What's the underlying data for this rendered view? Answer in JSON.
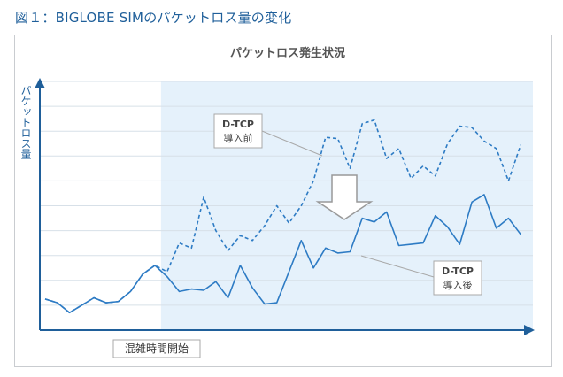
{
  "figure_title": "図１：BIGLOBE SIMのパケットロス量の変化",
  "chart_data": {
    "type": "line",
    "title": "パケットロス発生状況",
    "ylabel": "パケットロス量",
    "xlabel": "",
    "grid": true,
    "ylim": [
      0,
      10
    ],
    "xlim": [
      0,
      40
    ],
    "shaded_region": {
      "label": "混雑時間開始",
      "x_start": 9.5,
      "x_end": 40
    },
    "series": [
      {
        "name": "D-TCP導入前",
        "style": "dashed",
        "values": [
          [
            0,
            1.25
          ],
          [
            1,
            1.1
          ],
          [
            2,
            0.7
          ],
          [
            3,
            1.0
          ],
          [
            4,
            1.3
          ],
          [
            5,
            1.1
          ],
          [
            6,
            1.15
          ],
          [
            7,
            1.55
          ],
          [
            8,
            2.25
          ],
          [
            9,
            2.6
          ],
          [
            10,
            2.35
          ],
          [
            11,
            3.5
          ],
          [
            12,
            3.3
          ],
          [
            13,
            5.35
          ],
          [
            14,
            4.0
          ],
          [
            15,
            3.2
          ],
          [
            16,
            3.8
          ],
          [
            17,
            3.6
          ],
          [
            18,
            4.2
          ],
          [
            19,
            5.0
          ],
          [
            20,
            4.3
          ],
          [
            21,
            5.0
          ],
          [
            22,
            6.0
          ],
          [
            23,
            7.75
          ],
          [
            24,
            7.7
          ],
          [
            25,
            6.5
          ],
          [
            26,
            8.3
          ],
          [
            27,
            8.45
          ],
          [
            28,
            6.9
          ],
          [
            29,
            7.3
          ],
          [
            30,
            6.1
          ],
          [
            31,
            6.6
          ],
          [
            32,
            6.2
          ],
          [
            33,
            7.5
          ],
          [
            34,
            8.2
          ],
          [
            35,
            8.15
          ],
          [
            36,
            7.6
          ],
          [
            37,
            7.3
          ],
          [
            38,
            6.0
          ],
          [
            39,
            7.45
          ]
        ]
      },
      {
        "name": "D-TCP導入後",
        "style": "solid",
        "values": [
          [
            0,
            1.25
          ],
          [
            1,
            1.1
          ],
          [
            2,
            0.7
          ],
          [
            3,
            1.0
          ],
          [
            4,
            1.3
          ],
          [
            5,
            1.1
          ],
          [
            6,
            1.15
          ],
          [
            7,
            1.55
          ],
          [
            8,
            2.25
          ],
          [
            9,
            2.6
          ],
          [
            10,
            2.15
          ],
          [
            11,
            1.55
          ],
          [
            12,
            1.65
          ],
          [
            13,
            1.6
          ],
          [
            14,
            1.95
          ],
          [
            15,
            1.3
          ],
          [
            16,
            2.6
          ],
          [
            17,
            1.7
          ],
          [
            18,
            1.05
          ],
          [
            19,
            1.1
          ],
          [
            20,
            2.35
          ],
          [
            21,
            3.6
          ],
          [
            22,
            2.5
          ],
          [
            23,
            3.3
          ],
          [
            24,
            3.1
          ],
          [
            25,
            3.15
          ],
          [
            26,
            4.5
          ],
          [
            27,
            4.35
          ],
          [
            28,
            4.75
          ],
          [
            29,
            3.4
          ],
          [
            30,
            3.45
          ],
          [
            31,
            3.5
          ],
          [
            32,
            4.6
          ],
          [
            33,
            4.15
          ],
          [
            34,
            3.45
          ],
          [
            35,
            5.15
          ],
          [
            36,
            5.45
          ],
          [
            37,
            4.1
          ],
          [
            38,
            4.5
          ],
          [
            39,
            3.85
          ]
        ]
      }
    ],
    "annotations": [
      {
        "name": "before_label",
        "line1": "D-TCP",
        "line2": "導入前",
        "points_to": "D-TCP導入前"
      },
      {
        "name": "after_label",
        "line1": "D-TCP",
        "line2": "導入後",
        "points_to": "D-TCP導入後"
      }
    ],
    "colors": {
      "line": "#2d7bc4",
      "shade": "#e5f1fb",
      "axis": "#1f5f9a",
      "grid": "#d7e0e8",
      "title_text": "#555555",
      "box_border": "#a9a9a9",
      "arrow_fill": "#ffffff",
      "arrow_stroke": "#999999"
    }
  }
}
